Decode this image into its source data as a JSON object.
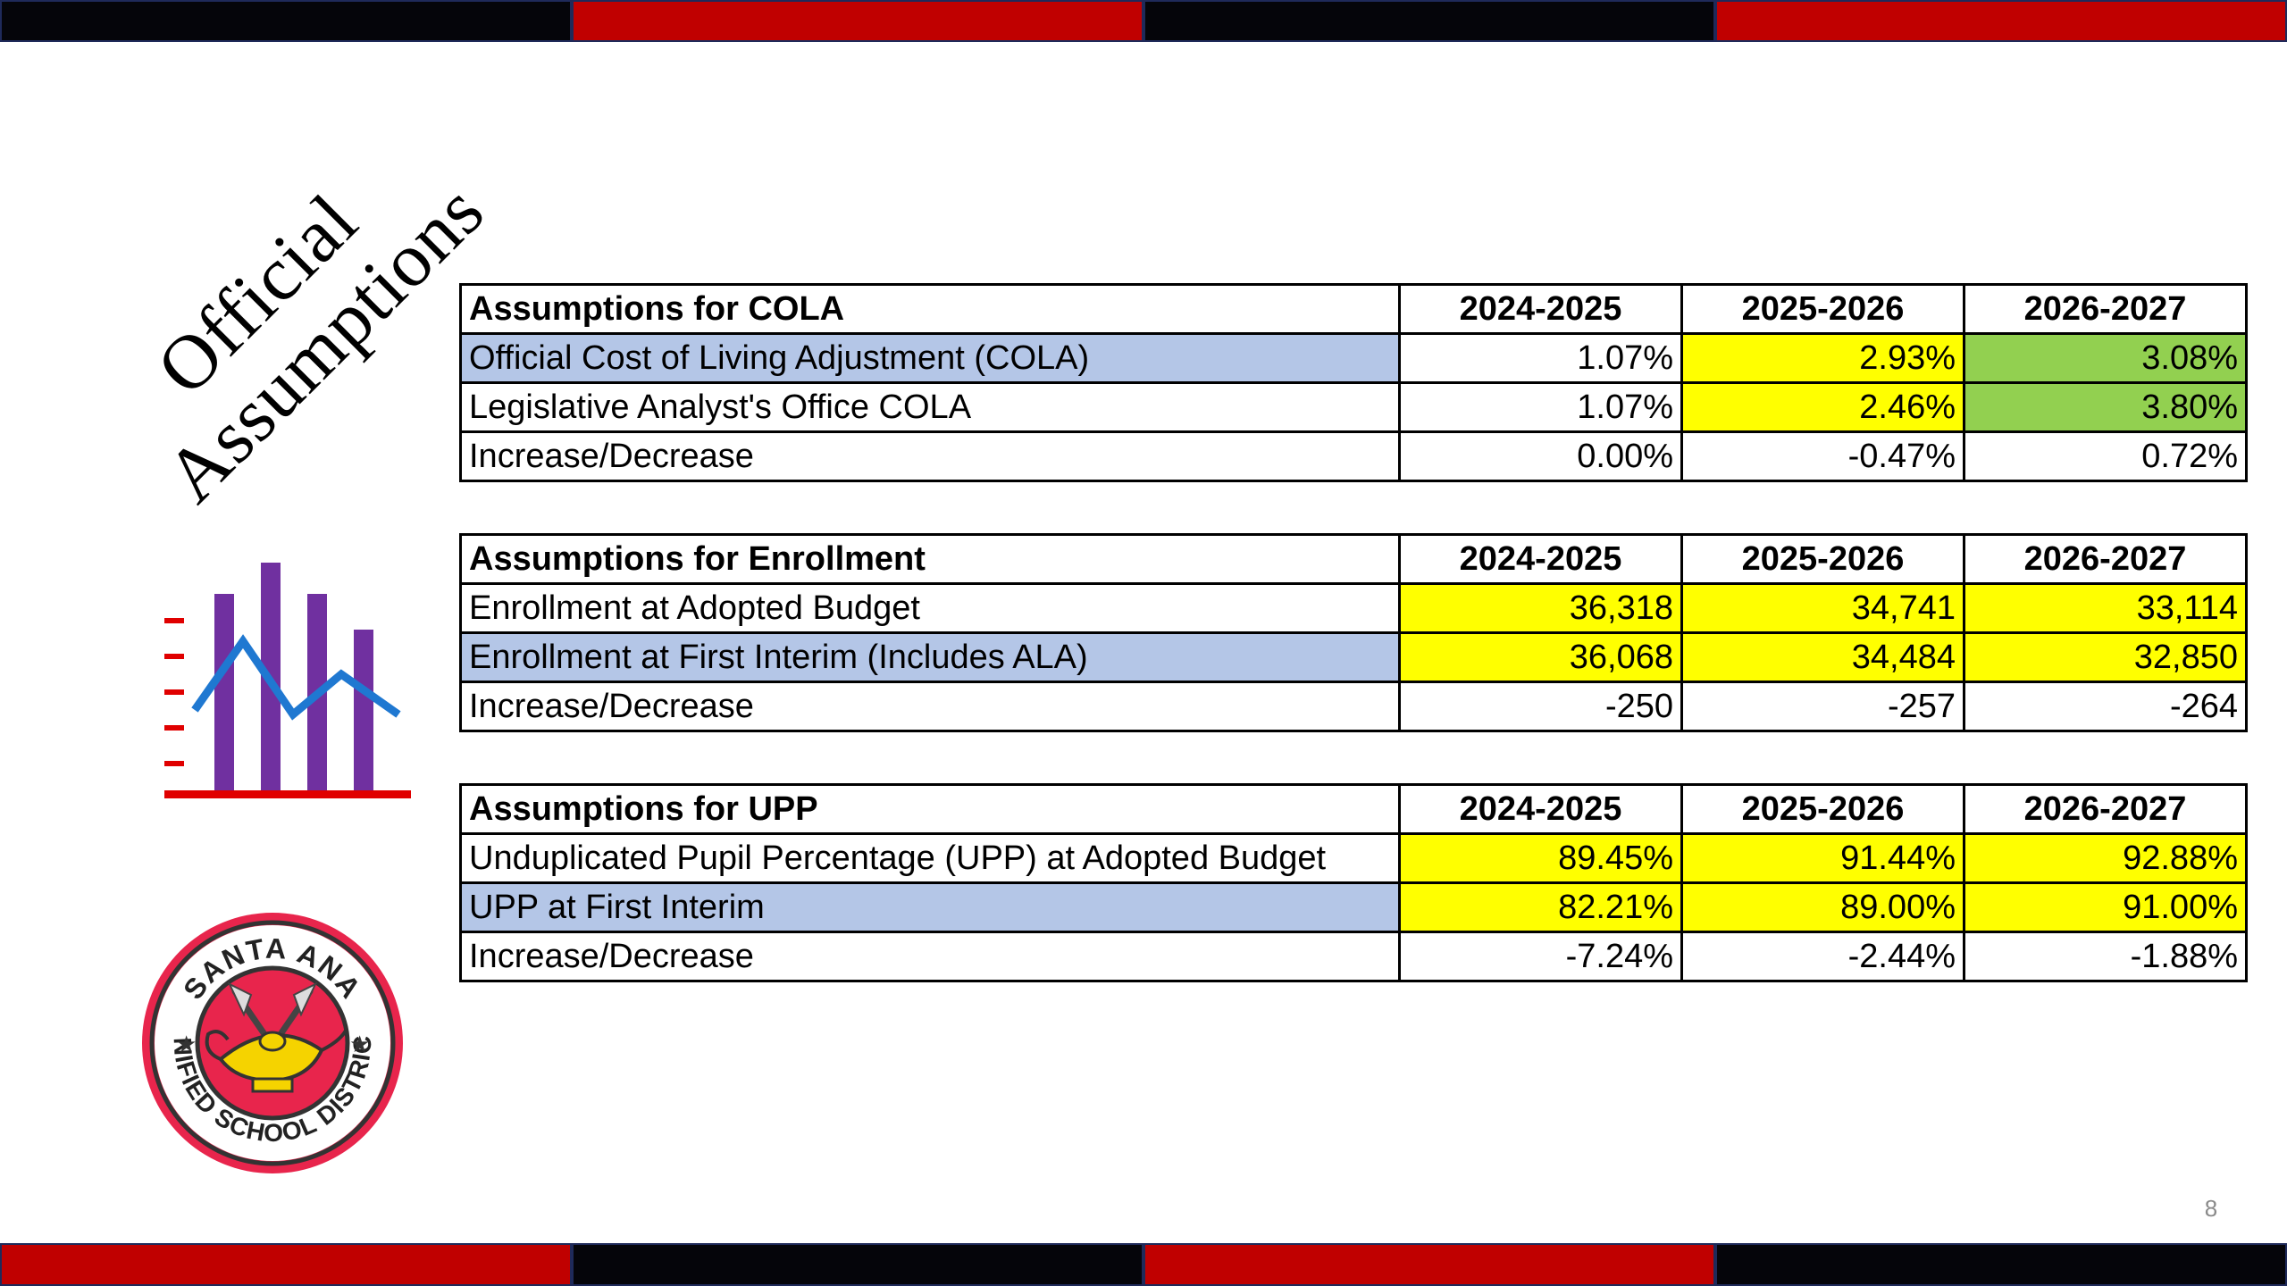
{
  "slide_title": {
    "line1": "Official",
    "line2": "Assumptions"
  },
  "colors": {
    "band_black": "#05050a",
    "band_red": "#c00000",
    "row_highlight_blue": "#b4c6e7",
    "cell_yellow": "#ffff00",
    "cell_green": "#92d050",
    "icon_bar_purple": "#7030a0",
    "icon_line_blue": "#1f78d1",
    "icon_axis_red": "#e00000"
  },
  "icons": {
    "chart": "bar-line-chart-icon",
    "logo": "santa-ana-usd-seal"
  },
  "logo": {
    "top_text": "SANTA ANA",
    "bottom_text": "UNIFIED SCHOOL DISTRICT"
  },
  "tables": {
    "cola": {
      "header": "Assumptions for COLA",
      "years": [
        "2024-2025",
        "2025-2026",
        "2026-2027"
      ],
      "rows": [
        {
          "label": "Official Cost of Living Adjustment (COLA)",
          "values": [
            "1.07%",
            "2.93%",
            "3.08%"
          ]
        },
        {
          "label": "Legislative Analyst's Office COLA",
          "values": [
            "1.07%",
            "2.46%",
            "3.80%"
          ]
        },
        {
          "label": "Increase/Decrease",
          "values": [
            "0.00%",
            "-0.47%",
            "0.72%"
          ]
        }
      ]
    },
    "enrollment": {
      "header": "Assumptions for Enrollment",
      "years": [
        "2024-2025",
        "2025-2026",
        "2026-2027"
      ],
      "rows": [
        {
          "label": "Enrollment at Adopted Budget",
          "values": [
            "36,318",
            "34,741",
            "33,114"
          ]
        },
        {
          "label": "Enrollment at First Interim (Includes ALA)",
          "values": [
            "36,068",
            "34,484",
            "32,850"
          ]
        },
        {
          "label": "Increase/Decrease",
          "values": [
            "-250",
            "-257",
            "-264"
          ]
        }
      ]
    },
    "upp": {
      "header": "Assumptions for UPP",
      "years": [
        "2024-2025",
        "2025-2026",
        "2026-2027"
      ],
      "rows": [
        {
          "label": "Unduplicated Pupil Percentage (UPP) at Adopted Budget",
          "values": [
            "89.45%",
            "91.44%",
            "92.88%"
          ]
        },
        {
          "label": "UPP at First Interim",
          "values": [
            "82.21%",
            "89.00%",
            "91.00%"
          ]
        },
        {
          "label": "Increase/Decrease",
          "values": [
            "-7.24%",
            "-2.44%",
            "-1.88%"
          ]
        }
      ]
    }
  },
  "page_number": "8"
}
